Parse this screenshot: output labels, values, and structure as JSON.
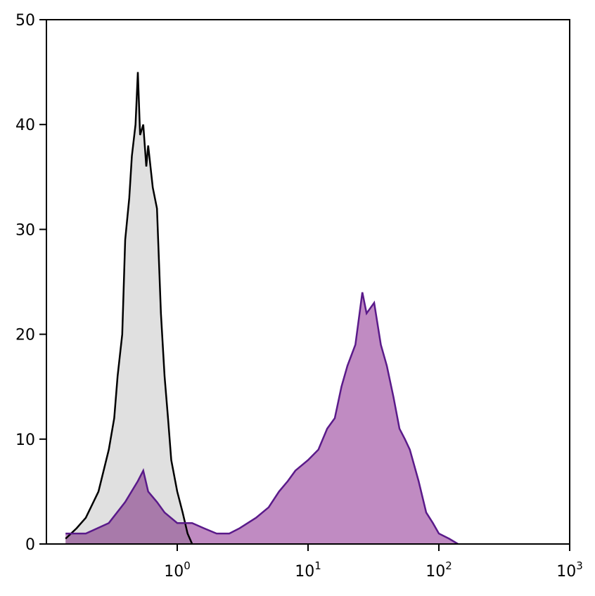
{
  "chart_data": {
    "type": "area",
    "xscale": "log",
    "xlim": [
      0.1,
      1000
    ],
    "ylim": [
      0,
      50
    ],
    "xticks": [
      {
        "value": 1,
        "label": "10",
        "exponent": "0"
      },
      {
        "value": 10,
        "label": "10",
        "exponent": "1"
      },
      {
        "value": 100,
        "label": "10",
        "exponent": "2"
      },
      {
        "value": 1000,
        "label": "10",
        "exponent": "3"
      }
    ],
    "yticks": [
      0,
      10,
      20,
      30,
      40,
      50
    ],
    "series": [
      {
        "color": "#000000",
        "fill": "#e0e0e0",
        "x": [
          0.14,
          0.17,
          0.2,
          0.25,
          0.3,
          0.33,
          0.35,
          0.38,
          0.4,
          0.43,
          0.45,
          0.48,
          0.5,
          0.52,
          0.55,
          0.58,
          0.6,
          0.65,
          0.7,
          0.75,
          0.8,
          0.85,
          0.9,
          1.0,
          1.1,
          1.2,
          1.3
        ],
        "values": [
          0.5,
          1.5,
          2.5,
          5,
          9,
          12,
          16,
          20,
          29,
          33,
          37,
          40,
          45,
          39,
          40,
          36,
          38,
          34,
          32,
          22,
          16,
          12,
          8,
          5,
          3,
          1,
          0
        ]
      },
      {
        "color": "#5a1a8a",
        "fill": "#c08bc2",
        "x": [
          0.14,
          0.2,
          0.3,
          0.4,
          0.5,
          0.55,
          0.6,
          0.7,
          0.8,
          1.0,
          1.3,
          1.6,
          2,
          2.5,
          3,
          4,
          5,
          6,
          7,
          8,
          10,
          12,
          14,
          16,
          18,
          20,
          23,
          26,
          28,
          32,
          36,
          40,
          45,
          50,
          55,
          60,
          70,
          80,
          90,
          100,
          120,
          140
        ],
        "values": [
          1,
          1,
          2,
          4,
          6,
          7,
          5,
          4,
          3,
          2,
          2,
          1.5,
          1,
          1,
          1.5,
          2.5,
          3.5,
          5,
          6,
          7,
          8,
          9,
          11,
          12,
          15,
          17,
          19,
          24,
          22,
          23,
          19,
          17,
          14,
          11,
          10,
          9,
          6,
          3,
          2,
          1,
          0.5,
          0
        ]
      }
    ]
  }
}
